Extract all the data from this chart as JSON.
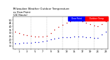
{
  "title": "Milwaukee Weather Outdoor Temperature\nvs Dew Point\n(24 Hours)",
  "title_fontsize": 2.8,
  "background_color": "#ffffff",
  "grid_color": "#999999",
  "hours": [
    0,
    1,
    2,
    3,
    4,
    5,
    6,
    7,
    8,
    9,
    10,
    11,
    12,
    13,
    14,
    15,
    16,
    17,
    18,
    19,
    20,
    21,
    22,
    23
  ],
  "temp_values": [
    32,
    30,
    28,
    27,
    26,
    25,
    24,
    24,
    26,
    30,
    35,
    39,
    43,
    46,
    48,
    49,
    49,
    48,
    46,
    44,
    42,
    40,
    44,
    48
  ],
  "dew_values": [
    14,
    14,
    15,
    15,
    15,
    16,
    16,
    17,
    18,
    20,
    21,
    22,
    23,
    23,
    23,
    24,
    24,
    24,
    23,
    23,
    22,
    22,
    28,
    32
  ],
  "temp_color": "#cc0000",
  "dew_color": "#0000cc",
  "temp_label": "Outdoor Temp",
  "dew_label": "Dew Point",
  "ylim": [
    5,
    55
  ],
  "xlim": [
    -0.5,
    23.5
  ],
  "yticks": [
    10,
    15,
    20,
    25,
    30,
    35,
    40,
    45,
    50
  ],
  "ytick_labels": [
    "10",
    "15",
    "20",
    "25",
    "30",
    "35",
    "40",
    "45",
    "50"
  ],
  "vgrid_positions": [
    4,
    8,
    12,
    16,
    20
  ],
  "legend_blue": "#0000ff",
  "legend_red": "#ff0000",
  "marker_size": 1.0,
  "tick_fontsize": 2.5,
  "fig_width": 1.6,
  "fig_height": 0.87,
  "dpi": 100
}
